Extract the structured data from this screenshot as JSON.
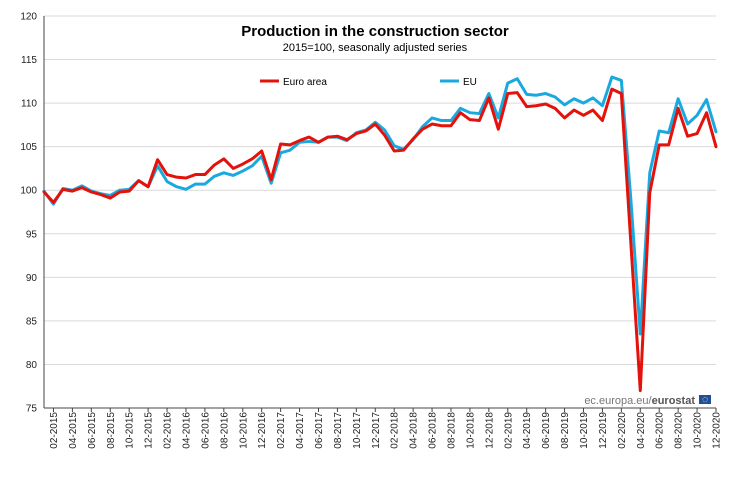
{
  "chart_data": {
    "type": "line",
    "title": "Production in the construction sector",
    "subtitle": "2015=100, seasonally adjusted series",
    "xlabel": "",
    "ylabel": "",
    "ylim": [
      75,
      120
    ],
    "yticks": [
      75,
      80,
      85,
      90,
      95,
      100,
      105,
      110,
      115,
      120
    ],
    "grid": true,
    "legend_position": "top-center",
    "x": [
      "01-2015",
      "02-2015",
      "03-2015",
      "04-2015",
      "05-2015",
      "06-2015",
      "07-2015",
      "08-2015",
      "09-2015",
      "10-2015",
      "11-2015",
      "12-2015",
      "01-2016",
      "02-2016",
      "03-2016",
      "04-2016",
      "05-2016",
      "06-2016",
      "07-2016",
      "08-2016",
      "09-2016",
      "10-2016",
      "11-2016",
      "12-2016",
      "01-2017",
      "02-2017",
      "03-2017",
      "04-2017",
      "05-2017",
      "06-2017",
      "07-2017",
      "08-2017",
      "09-2017",
      "10-2017",
      "11-2017",
      "12-2017",
      "01-2018",
      "02-2018",
      "03-2018",
      "04-2018",
      "05-2018",
      "06-2018",
      "07-2018",
      "08-2018",
      "09-2018",
      "10-2018",
      "11-2018",
      "12-2018",
      "01-2019",
      "02-2019",
      "03-2019",
      "04-2019",
      "05-2019",
      "06-2019",
      "07-2019",
      "08-2019",
      "09-2019",
      "10-2019",
      "11-2019",
      "12-2019",
      "01-2020",
      "02-2020",
      "03-2020",
      "04-2020",
      "05-2020",
      "06-2020",
      "07-2020",
      "08-2020",
      "09-2020",
      "10-2020",
      "11-2020",
      "12-2020"
    ],
    "tick_labels": [
      "02-2015",
      "04-2015",
      "06-2015",
      "08-2015",
      "10-2015",
      "12-2015",
      "02-2016",
      "04-2016",
      "06-2016",
      "08-2016",
      "10-2016",
      "12-2016",
      "02-2017",
      "04-2017",
      "06-2017",
      "08-2017",
      "10-2017",
      "12-2017",
      "02-2018",
      "04-2018",
      "06-2018",
      "08-2018",
      "10-2018",
      "12-2018",
      "02-2019",
      "04-2019",
      "06-2019",
      "08-2019",
      "10-2019",
      "12-2019",
      "02-2020",
      "04-2020",
      "06-2020",
      "08-2020",
      "10-2020",
      "12-2020"
    ],
    "series": [
      {
        "name": "Euro area",
        "color": "#e3120b",
        "values": [
          99.8,
          98.6,
          100.1,
          99.9,
          100.3,
          99.8,
          99.5,
          99.1,
          99.8,
          99.9,
          101.1,
          100.4,
          103.5,
          101.8,
          101.5,
          101.4,
          101.8,
          101.8,
          102.9,
          103.6,
          102.5,
          103.0,
          103.6,
          104.5,
          101.2,
          105.3,
          105.2,
          105.7,
          106.1,
          105.5,
          106.1,
          106.2,
          105.8,
          106.5,
          106.8,
          107.6,
          106.3,
          104.5,
          104.6,
          105.9,
          107.0,
          107.6,
          107.4,
          107.4,
          108.9,
          108.1,
          108.0,
          110.6,
          107.0,
          111.1,
          111.2,
          109.6,
          109.7,
          109.9,
          109.4,
          108.3,
          109.2,
          108.6,
          109.2,
          108.0,
          111.6,
          111.1,
          94.0,
          77.0,
          99.7,
          105.2,
          105.2,
          109.4,
          106.2,
          106.5,
          108.9,
          105.0
        ]
      },
      {
        "name": "EU",
        "color": "#1aa9df",
        "values": [
          99.9,
          98.4,
          100.2,
          100.0,
          100.5,
          99.9,
          99.6,
          99.4,
          100.0,
          100.1,
          101.1,
          100.4,
          102.8,
          101.0,
          100.4,
          100.1,
          100.7,
          100.7,
          101.6,
          102.0,
          101.7,
          102.2,
          102.8,
          103.9,
          100.8,
          104.3,
          104.6,
          105.5,
          105.6,
          105.5,
          106.1,
          106.1,
          105.7,
          106.6,
          106.9,
          107.8,
          106.9,
          105.1,
          104.7,
          105.8,
          107.3,
          108.3,
          108.0,
          108.0,
          109.4,
          108.9,
          108.8,
          111.1,
          108.3,
          112.3,
          112.8,
          111.0,
          110.9,
          111.1,
          110.7,
          109.8,
          110.5,
          110.0,
          110.6,
          109.7,
          113.0,
          112.6,
          99.0,
          83.5,
          102.0,
          106.8,
          106.6,
          110.5,
          107.6,
          108.6,
          110.4,
          106.7
        ]
      }
    ]
  },
  "credit": {
    "prefix": "ec.europa.eu/",
    "bold": "eurostat"
  },
  "colors": {
    "grid": "#d9d9d9",
    "axis": "#444444",
    "euro_area": "#e3120b",
    "eu": "#1aa9df",
    "flag_blue": "#1f4e9c",
    "flag_star": "#f5d90a"
  }
}
